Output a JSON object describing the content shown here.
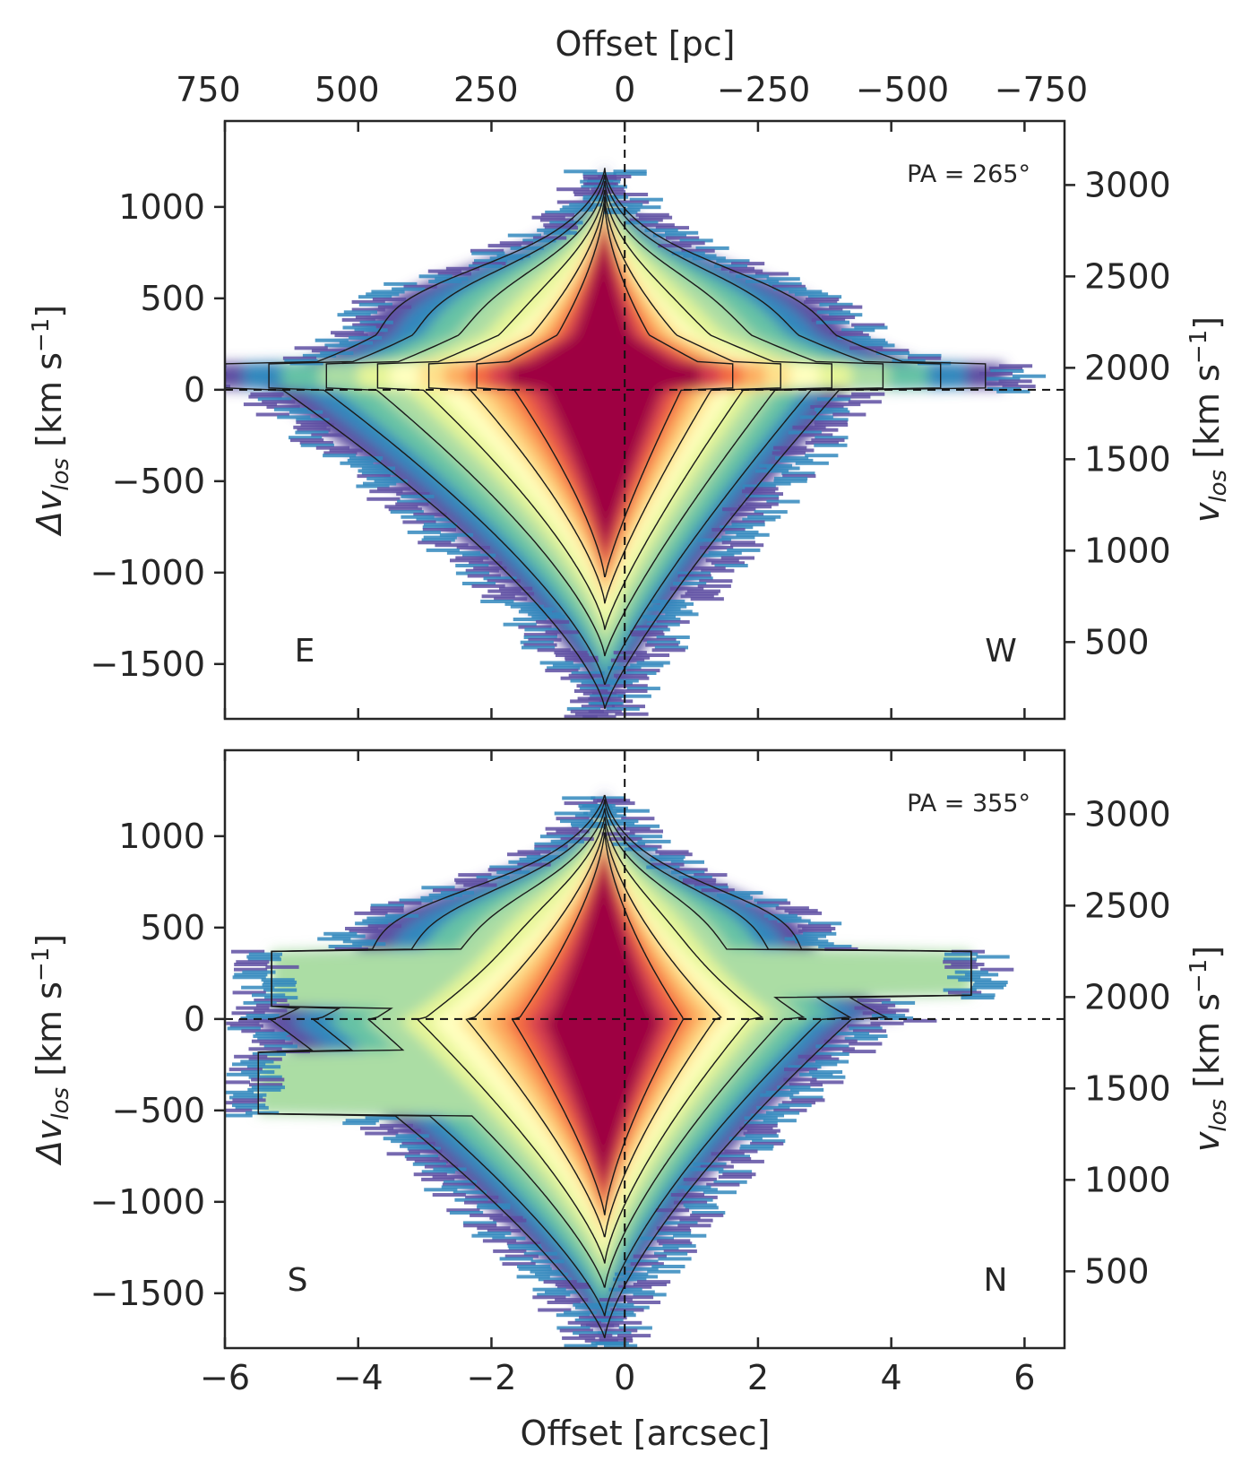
{
  "chart_data": [
    {
      "type": "heatmap",
      "panel": "top",
      "annotation_pa": "PA = 265°",
      "left_corner": "E",
      "right_corner": "W",
      "xlim": [
        -6,
        6.6
      ],
      "ylim": [
        -1800,
        1470
      ],
      "x_ticks": [
        -6,
        -4,
        -2,
        0,
        2,
        4,
        6
      ],
      "y_ticks": [
        -1500,
        -1000,
        -500,
        0,
        500,
        1000
      ],
      "y_tick_labels": [
        "−1500",
        "−1000",
        "−500",
        "0",
        "500",
        "1000"
      ],
      "right_ticks": [
        500,
        1000,
        1500,
        2000,
        2500,
        3000
      ],
      "top_ticks": [
        750,
        500,
        250,
        0,
        -250,
        -500,
        -750
      ],
      "top_tick_labels": [
        "750",
        "500",
        "250",
        "0",
        "−250",
        "−500",
        "−750"
      ],
      "ylabel": "Δv",
      "ylabel_sub": "los",
      "ylabel_unit": " [km s",
      "ylabel_exp": "−1",
      "ylabel_close": "]",
      "right_ylabel": "v",
      "right_ylabel_sub": "los",
      "right_ylabel_unit": " [km s",
      "right_ylabel_exp": "−1",
      "right_ylabel_close": "]",
      "top_xlabel": "Offset [pc]",
      "reference_lines": {
        "x": 0,
        "y": 0
      }
    },
    {
      "type": "heatmap",
      "panel": "bottom",
      "annotation_pa": "PA = 355°",
      "left_corner": "S",
      "right_corner": "N",
      "xlim": [
        -6,
        6.6
      ],
      "ylim": [
        -1800,
        1470
      ],
      "x_ticks": [
        -6,
        -4,
        -2,
        0,
        2,
        4,
        6
      ],
      "x_tick_labels": [
        "−6",
        "−4",
        "−2",
        "0",
        "2",
        "4",
        "6"
      ],
      "y_ticks": [
        -1500,
        -1000,
        -500,
        0,
        500,
        1000
      ],
      "y_tick_labels": [
        "−1500",
        "−1000",
        "−500",
        "0",
        "500",
        "1000"
      ],
      "right_ticks": [
        500,
        1000,
        1500,
        2000,
        2500,
        3000
      ],
      "ylabel": "Δv",
      "ylabel_sub": "los",
      "ylabel_unit": " [km s",
      "ylabel_exp": "−1",
      "ylabel_close": "]",
      "right_ylabel": "v",
      "right_ylabel_sub": "los",
      "right_ylabel_unit": " [km s",
      "right_ylabel_exp": "−1",
      "right_ylabel_close": "]",
      "xlabel": "Offset [arcsec]",
      "reference_lines": {
        "x": 0,
        "y": 0
      }
    }
  ],
  "colormap": [
    "#5e4fa2",
    "#3288bd",
    "#66c2a5",
    "#abdda4",
    "#e6f598",
    "#ffffbf",
    "#fee08b",
    "#fdae61",
    "#f46d43",
    "#d53e4f",
    "#9e0142"
  ]
}
